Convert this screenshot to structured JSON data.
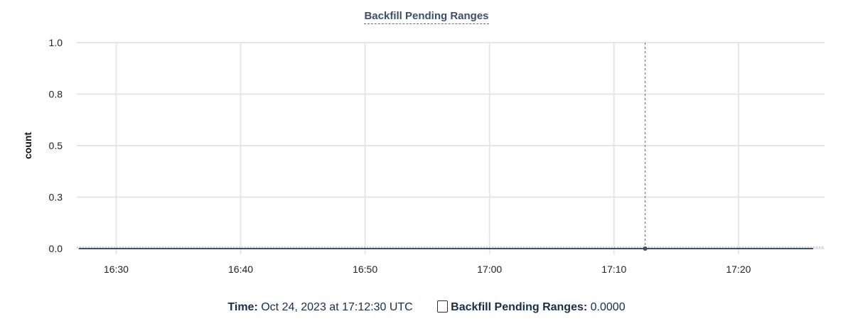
{
  "chart_data": {
    "type": "line",
    "title": "Backfill Pending Ranges",
    "ylabel": "count",
    "xlabel": "",
    "ylim": [
      0,
      1
    ],
    "yticks": [
      0,
      0.25,
      0.5,
      0.75,
      1.0
    ],
    "ytick_labels": [
      "0.0",
      "0.3",
      "0.5",
      "0.8",
      "1.0"
    ],
    "xlim": [
      "16:26:50",
      "17:26:55"
    ],
    "xtick_labels": [
      "16:30",
      "16:40",
      "16:50",
      "17:00",
      "17:10",
      "17:20"
    ],
    "grid": true,
    "series": [
      {
        "name": "Backfill Pending Ranges",
        "color": "#3d4f6a",
        "x": [
          "16:27:00",
          "17:12:30",
          "17:26:00"
        ],
        "values": [
          0,
          0,
          0
        ]
      }
    ],
    "hover": {
      "x": "17:12:30",
      "value": 0
    }
  },
  "legend": {
    "time_label": "Time:",
    "time_value": "Oct 24, 2023 at 17:12:30 UTC",
    "series_label": "Backfill Pending Ranges:",
    "series_value": "0.0000"
  }
}
